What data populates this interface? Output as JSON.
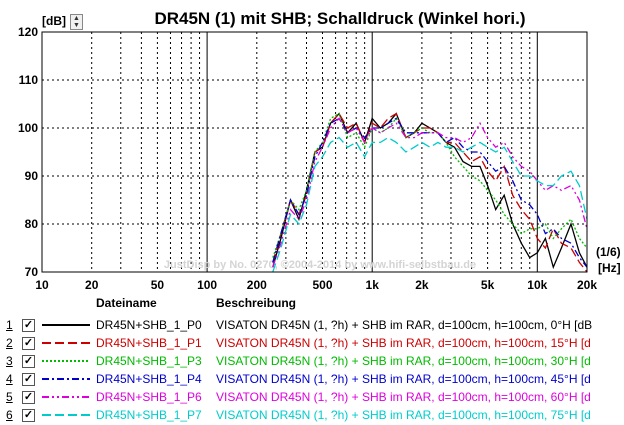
{
  "chart_data": {
    "type": "line",
    "title": "DR45N (1) mit SHB; Schalldruck (Winkel hori.)",
    "ylabel": "[dB]",
    "xlabel_line1": "(1/6)",
    "xlabel_line2": "[Hz]",
    "x_scale": "log",
    "xlim": [
      10,
      20000
    ],
    "ylim": [
      70,
      120
    ],
    "y_ticks": [
      70,
      80,
      90,
      100,
      110,
      120
    ],
    "x_tick_labels": [
      {
        "value": 10,
        "label": "10"
      },
      {
        "value": 20,
        "label": "20"
      },
      {
        "value": 50,
        "label": "50"
      },
      {
        "value": 100,
        "label": "100"
      },
      {
        "value": 200,
        "label": "200"
      },
      {
        "value": 500,
        "label": "500"
      },
      {
        "value": 1000,
        "label": "1k"
      },
      {
        "value": 2000,
        "label": "2k"
      },
      {
        "value": 5000,
        "label": "5k"
      },
      {
        "value": 10000,
        "label": "10k"
      },
      {
        "value": 20000,
        "label": "20k"
      }
    ],
    "grid": true,
    "watermark": "JustDisp by No. 0270, ©2004-2014 by www.hifi-selbstbau.de",
    "x": [
      250,
      280,
      320,
      360,
      400,
      450,
      500,
      560,
      630,
      710,
      800,
      900,
      1000,
      1120,
      1250,
      1400,
      1600,
      1800,
      2000,
      2240,
      2500,
      2800,
      3150,
      3550,
      4000,
      4500,
      5000,
      5600,
      6300,
      7100,
      8000,
      9000,
      10000,
      11200,
      12500,
      14000,
      16000,
      18000,
      20000
    ],
    "series": [
      {
        "name": "DR45N+SHB_1_P0",
        "color": "#000000",
        "dash": "solid",
        "values": [
          71,
          77,
          85,
          81,
          87,
          95,
          96,
          101,
          103,
          99,
          101,
          97,
          102,
          100,
          101,
          103,
          98,
          99,
          101,
          100,
          99,
          97,
          96,
          93,
          92,
          92,
          88,
          83,
          86,
          80,
          76,
          73,
          74,
          77,
          71,
          75,
          80,
          74,
          71
        ]
      },
      {
        "name": "DR45N+SHB_1_P1",
        "color": "#cc0000",
        "dash": "longdash",
        "values": [
          72,
          78,
          85,
          82,
          86,
          95,
          96,
          101,
          103,
          100,
          101,
          97,
          101,
          100,
          102,
          103,
          98,
          99,
          100,
          100,
          99,
          97,
          97,
          95,
          93,
          94,
          91,
          89,
          92,
          86,
          83,
          81,
          77,
          75,
          79,
          76,
          75,
          72,
          70
        ]
      },
      {
        "name": "DR45N+SHB_1_P3",
        "color": "#00bb00",
        "dash": "dotted",
        "values": [
          73,
          78,
          85,
          83,
          87,
          95,
          97,
          102,
          103,
          98,
          99,
          96,
          100,
          99,
          100,
          102,
          98,
          99,
          100,
          99,
          99,
          97,
          94,
          92,
          90,
          89,
          87,
          85,
          82,
          80,
          78,
          79,
          79,
          80,
          77,
          79,
          81,
          77,
          75
        ]
      },
      {
        "name": "DR45N+SHB_1_P4",
        "color": "#0000cc",
        "dash": "dashdot",
        "values": [
          72,
          78,
          85,
          82,
          86,
          94,
          97,
          101,
          102,
          99,
          100,
          98,
          100,
          100,
          101,
          102,
          99,
          99,
          99,
          99,
          99,
          97,
          98,
          96,
          95,
          95,
          93,
          91,
          92,
          89,
          85,
          84,
          82,
          78,
          79,
          77,
          76,
          73,
          71
        ]
      },
      {
        "name": "DR45N+SHB_1_P6",
        "color": "#dd00dd",
        "dash": "dashdotdot",
        "values": [
          71,
          76,
          83,
          81,
          85,
          93,
          96,
          100,
          102,
          99,
          100,
          97,
          100,
          99,
          100,
          101,
          98,
          98,
          99,
          99,
          99,
          98,
          98,
          97,
          98,
          101,
          98,
          96,
          97,
          94,
          92,
          91,
          89,
          87,
          88,
          87,
          88,
          85,
          79
        ]
      },
      {
        "name": "DR45N+SHB_1_P7",
        "color": "#00cccc",
        "dash": "longdash",
        "values": [
          70,
          75,
          82,
          80,
          84,
          92,
          94,
          97,
          98,
          96,
          97,
          94,
          97,
          97,
          98,
          97,
          95,
          96,
          97,
          96,
          97,
          96,
          96,
          95,
          96,
          97,
          96,
          95,
          96,
          93,
          90,
          90,
          89,
          88,
          88,
          90,
          91,
          88,
          81
        ]
      }
    ]
  },
  "legend": {
    "header_file": "Dateiname",
    "header_desc": "Beschreibung",
    "rows": [
      {
        "num": "1",
        "check": "✓",
        "file": "DR45N+SHB_1_P0",
        "desc": "VISATON DR45N (1, ?h) + SHB im RAR, d=100cm, h=100cm, 0°H [dB",
        "color": "#000000"
      },
      {
        "num": "2",
        "check": "✓",
        "file": "DR45N+SHB_1_P1",
        "desc": "VISATON DR45N (1, ?h) + SHB im RAR, d=100cm, h=100cm, 15°H [d",
        "color": "#cc0000"
      },
      {
        "num": "3",
        "check": "✓",
        "file": "DR45N+SHB_1_P3",
        "desc": "VISATON DR45N (1, ?h) + SHB im RAR, d=100cm, h=100cm, 30°H [d",
        "color": "#00bb00"
      },
      {
        "num": "4",
        "check": "✓",
        "file": "DR45N+SHB_1_P4",
        "desc": "VISATON DR45N (1, ?h) + SHB im RAR, d=100cm, h=100cm, 45°H [d",
        "color": "#0000cc"
      },
      {
        "num": "5",
        "check": "✓",
        "file": "DR45N+SHB_1_P6",
        "desc": "VISATON DR45N (1, ?h) + SHB im RAR, d=100cm, h=100cm, 60°H [d",
        "color": "#dd00dd"
      },
      {
        "num": "6",
        "check": "✓",
        "file": "DR45N+SHB_1_P7",
        "desc": "VISATON DR45N (1, ?h) + SHB im RAR, d=100cm, h=100cm, 75°H [d",
        "color": "#00cccc"
      }
    ]
  }
}
